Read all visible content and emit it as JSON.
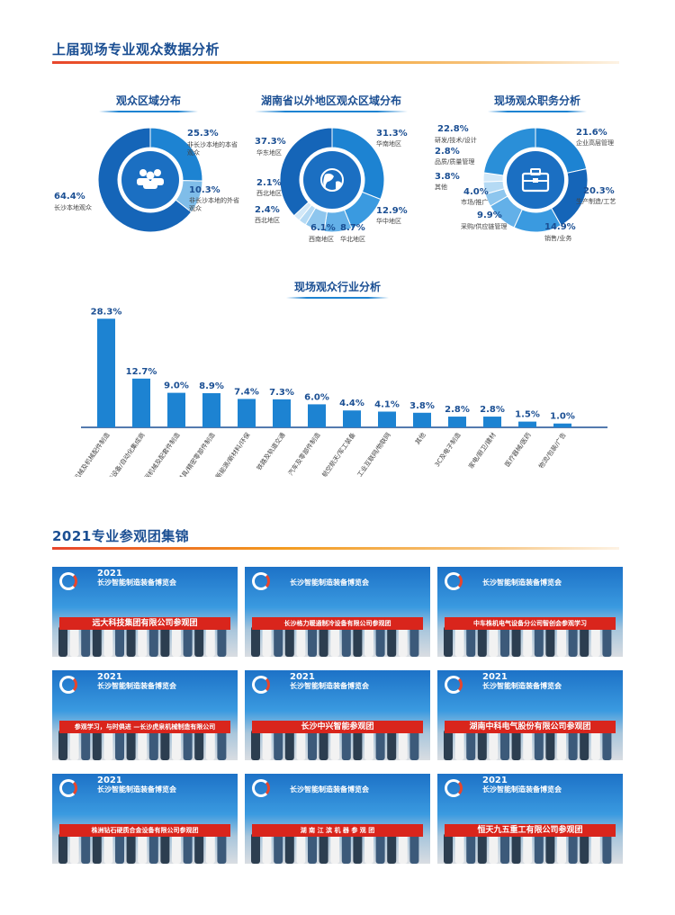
{
  "sections": {
    "analysis_title": "上届现场专业观众数据分析",
    "groups_title": "2021专业参观团集锦"
  },
  "chart_data": [
    {
      "type": "pie",
      "title": "观众区域分布",
      "slices": [
        {
          "label": "非长沙本地的本省观众",
          "value": 25.3,
          "pct": "25.3%",
          "color": "#1d83d2"
        },
        {
          "label": "非长沙本地的外省观众",
          "value": 10.3,
          "pct": "10.3%",
          "color": "#7fbde9"
        },
        {
          "label": "长沙本地观众",
          "value": 64.4,
          "pct": "64.4%",
          "color": "#1565b8"
        }
      ]
    },
    {
      "type": "pie",
      "title": "湖南省以外地区观众区域分布",
      "slices": [
        {
          "label": "华南地区",
          "value": 31.3,
          "pct": "31.3%",
          "color": "#1d83d2"
        },
        {
          "label": "华中地区",
          "value": 12.9,
          "pct": "12.9%",
          "color": "#3a9ae0"
        },
        {
          "label": "华北地区",
          "value": 8.7,
          "pct": "8.7%",
          "color": "#63b0e8"
        },
        {
          "label": "西南地区",
          "value": 6.1,
          "pct": "6.1%",
          "color": "#8ec6ee"
        },
        {
          "label": "西北地区",
          "value": 2.4,
          "pct": "2.4%",
          "color": "#b5daf4"
        },
        {
          "label": "西北地区",
          "value": 2.1,
          "pct": "2.1%",
          "color": "#d2e8f8"
        },
        {
          "label": "华东地区",
          "value": 37.3,
          "pct": "37.3%",
          "color": "#1565b8"
        }
      ]
    },
    {
      "type": "pie",
      "title": "现场观众职务分析",
      "slices": [
        {
          "label": "企业高层管理",
          "value": 21.6,
          "pct": "21.6%",
          "color": "#1d83d2"
        },
        {
          "label": "生产制造/工艺",
          "value": 20.3,
          "pct": "20.3%",
          "color": "#1565b8"
        },
        {
          "label": "销售/业务",
          "value": 14.9,
          "pct": "14.9%",
          "color": "#3a9ae0"
        },
        {
          "label": "采购/供应链管理",
          "value": 9.9,
          "pct": "9.9%",
          "color": "#63b0e8"
        },
        {
          "label": "市场/推广",
          "value": 4.0,
          "pct": "4.0%",
          "color": "#8ec6ee"
        },
        {
          "label": "其他",
          "value": 3.8,
          "pct": "3.8%",
          "color": "#b5daf4"
        },
        {
          "label": "品质/质量管理",
          "value": 2.8,
          "pct": "2.8%",
          "color": "#d2e8f8"
        },
        {
          "label": "研发/技术/设计",
          "value": 22.8,
          "pct": "22.8%",
          "color": "#2a8fd8"
        }
      ]
    },
    {
      "type": "bar",
      "title": "现场观众行业分析",
      "categories": [
        "机械及机械配件制造",
        "非标设备/自动化集成商",
        "工程机械及配套件制造",
        "机加工/模具/精密零部件制造",
        "新能源/新材料/环保",
        "铁路及轨道交通",
        "汽车及零部件制造",
        "航空航天/军工装备",
        "工业互联网/物联网",
        "其他",
        "3C及电子制造",
        "家电/厨卫/建材",
        "医疗器械/医药",
        "物流/包装/广告"
      ],
      "values": [
        28.3,
        12.7,
        9.0,
        8.9,
        7.4,
        7.3,
        6.0,
        4.4,
        4.1,
        3.8,
        2.8,
        2.8,
        1.5,
        1.0
      ],
      "value_labels": [
        "28.3%",
        "12.7%",
        "9.0%",
        "8.9%",
        "7.4%",
        "7.3%",
        "6.0%",
        "4.4%",
        "4.1%",
        "3.8%",
        "2.8%",
        "2.8%",
        "1.5%",
        "1.0%"
      ],
      "ylim": [
        0,
        30
      ],
      "color": "#1d83d2"
    }
  ],
  "photos": [
    {
      "year": "2021",
      "expo": "长沙智能制造装备博览会",
      "banner": "远大科技集团有限公司参观团"
    },
    {
      "year": "",
      "expo": "长沙智能制造装备博览会",
      "banner": "长沙格力暖通制冷设备有限公司参观团"
    },
    {
      "year": "",
      "expo": "长沙智能制造装备博览会",
      "banner": "中车株机电气设备分公司智创会参观学习"
    },
    {
      "year": "2021",
      "expo": "长沙智能制造装备博览会",
      "banner": "参观学习，与时俱进 —长沙虎泉机械制造有限公司"
    },
    {
      "year": "2021",
      "expo": "长沙智能制造装备博览会",
      "banner": "长沙中兴智能参观团"
    },
    {
      "year": "2021",
      "expo": "长沙智能制造装备博览会",
      "banner": "湖南中科电气股份有限公司参观团"
    },
    {
      "year": "2021",
      "expo": "长沙智能制造装备博览会",
      "banner": "株洲钻石硬质合金设备有限公司参观团"
    },
    {
      "year": "",
      "expo": "长沙智能制造装备博览会",
      "banner": "湖 南 江 滨 机 器 参 观 团"
    },
    {
      "year": "2021",
      "expo": "长沙智能制造装备博览会",
      "banner": "恒天九五重工有限公司参观团"
    }
  ]
}
